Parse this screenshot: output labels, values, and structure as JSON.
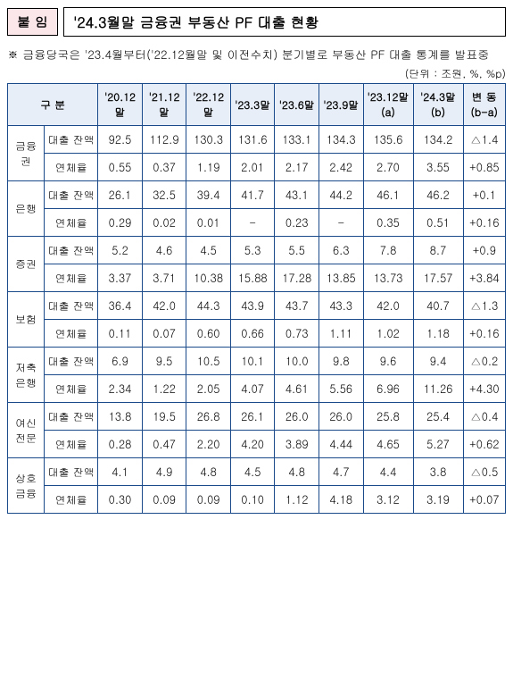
{
  "header": {
    "badge": "붙 임",
    "title": "'24.3월말 금융권 부동산 PF 대출 현황"
  },
  "note": "※ 금융당국은 '23.4월부터('22.12월말 및 이전수치) 분기별로 부동산 PF 대출 통계를 발표중",
  "unit": "(단위 : 조원, %, %p)",
  "columns": {
    "category": "구   분",
    "periods": [
      "'20.12말",
      "'21.12말",
      "'22.12말",
      "'23.3말",
      "'23.6말",
      "'23.9말"
    ],
    "a": "'23.12말\n(a)",
    "b": "'24.3말\n(b)",
    "delta": "변 동\n(b-a)"
  },
  "subLabels": {
    "balance": "대출 잔액",
    "rate": "연체율"
  },
  "rows": [
    {
      "cat": "금융권",
      "balance": {
        "p": [
          "92.5",
          "112.9",
          "130.3",
          "131.6",
          "133.1",
          "134.3"
        ],
        "a": "135.6",
        "b": "134.2",
        "d": "△1.4"
      },
      "rate": {
        "p": [
          "0.55",
          "0.37",
          "1.19",
          "2.01",
          "2.17",
          "2.42"
        ],
        "a": "2.70",
        "b": "3.55",
        "d": "+0.85"
      }
    },
    {
      "cat": "은행",
      "balance": {
        "p": [
          "26.1",
          "32.5",
          "39.4",
          "41.7",
          "43.1",
          "44.2"
        ],
        "a": "46.1",
        "b": "46.2",
        "d": "+0.1"
      },
      "rate": {
        "p": [
          "0.29",
          "0.02",
          "0.01",
          "-",
          "0.23",
          "-"
        ],
        "a": "0.35",
        "b": "0.51",
        "d": "+0.16"
      }
    },
    {
      "cat": "증권",
      "balance": {
        "p": [
          "5.2",
          "4.6",
          "4.5",
          "5.3",
          "5.5",
          "6.3"
        ],
        "a": "7.8",
        "b": "8.7",
        "d": "+0.9"
      },
      "rate": {
        "p": [
          "3.37",
          "3.71",
          "10.38",
          "15.88",
          "17.28",
          "13.85"
        ],
        "a": "13.73",
        "b": "17.57",
        "d": "+3.84"
      }
    },
    {
      "cat": "보험",
      "balance": {
        "p": [
          "36.4",
          "42.0",
          "44.3",
          "43.9",
          "43.7",
          "43.3"
        ],
        "a": "42.0",
        "b": "40.7",
        "d": "△1.3"
      },
      "rate": {
        "p": [
          "0.11",
          "0.07",
          "0.60",
          "0.66",
          "0.73",
          "1.11"
        ],
        "a": "1.02",
        "b": "1.18",
        "d": "+0.16"
      }
    },
    {
      "cat": "저축\n은행",
      "balance": {
        "p": [
          "6.9",
          "9.5",
          "10.5",
          "10.1",
          "10.0",
          "9.8"
        ],
        "a": "9.6",
        "b": "9.4",
        "d": "△0.2"
      },
      "rate": {
        "p": [
          "2.34",
          "1.22",
          "2.05",
          "4.07",
          "4.61",
          "5.56"
        ],
        "a": "6.96",
        "b": "11.26",
        "d": "+4.30"
      }
    },
    {
      "cat": "여신\n전문",
      "balance": {
        "p": [
          "13.8",
          "19.5",
          "26.8",
          "26.1",
          "26.0",
          "26.0"
        ],
        "a": "25.8",
        "b": "25.4",
        "d": "△0.4"
      },
      "rate": {
        "p": [
          "0.28",
          "0.47",
          "2.20",
          "4.20",
          "3.89",
          "4.44"
        ],
        "a": "4.65",
        "b": "5.27",
        "d": "+0.62"
      }
    },
    {
      "cat": "상호\n금융",
      "balance": {
        "p": [
          "4.1",
          "4.9",
          "4.8",
          "4.5",
          "4.8",
          "4.7"
        ],
        "a": "4.4",
        "b": "3.8",
        "d": "△0.5"
      },
      "rate": {
        "p": [
          "0.30",
          "0.09",
          "0.09",
          "0.10",
          "1.12",
          "4.18"
        ],
        "a": "3.12",
        "b": "3.19",
        "d": "+0.07"
      }
    }
  ]
}
